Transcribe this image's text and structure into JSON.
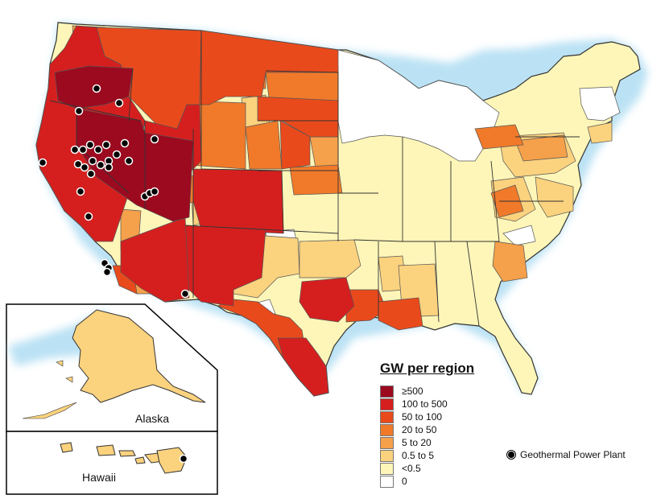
{
  "legend": {
    "title": "GW per region",
    "classes": [
      {
        "label": "≥500",
        "color": "#9b0a1f"
      },
      {
        "label": "100 to 500",
        "color": "#d51f1f"
      },
      {
        "label": "50 to 100",
        "color": "#e94a1c"
      },
      {
        "label": "20 to 50",
        "color": "#f07a2a"
      },
      {
        "label": "5 to 20",
        "color": "#f5a04a"
      },
      {
        "label": "0.5 to 5",
        "color": "#fbd27e"
      },
      {
        "label": "<0.5",
        "color": "#fdf6b8"
      },
      {
        "label": "0",
        "color": "#ffffff"
      }
    ]
  },
  "plant_legend": {
    "label": "Geothermal Power Plant",
    "icon": "black-dot"
  },
  "insets": {
    "alaska_label": "Alaska",
    "hawaii_label": "Hawaii",
    "alaska_class": "0.5 to 5",
    "hawaii_class": "0.5 to 5"
  },
  "colors": {
    "water_shadow": "#9fd6f0",
    "border": "#333333",
    "region_line": "#555555"
  }
}
